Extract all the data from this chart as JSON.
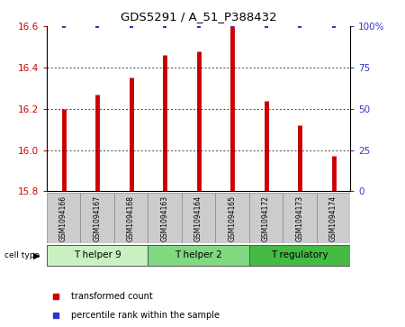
{
  "title": "GDS5291 / A_51_P388432",
  "samples": [
    "GSM1094166",
    "GSM1094167",
    "GSM1094168",
    "GSM1094163",
    "GSM1094164",
    "GSM1094165",
    "GSM1094172",
    "GSM1094173",
    "GSM1094174"
  ],
  "transformed_counts": [
    16.2,
    16.27,
    16.35,
    16.46,
    16.48,
    16.6,
    16.24,
    16.12,
    15.97
  ],
  "percentile_ranks": [
    100,
    100,
    100,
    100,
    100,
    100,
    100,
    100,
    100
  ],
  "ylim": [
    15.8,
    16.6
  ],
  "yticks": [
    15.8,
    16.0,
    16.2,
    16.4,
    16.6
  ],
  "right_yticks": [
    0,
    25,
    50,
    75,
    100
  ],
  "bar_color": "#cc0000",
  "dot_color": "#3333cc",
  "cell_types": [
    {
      "label": "T helper 9",
      "start": 0,
      "end": 3,
      "color": "#c8f0c0"
    },
    {
      "label": "T helper 2",
      "start": 3,
      "end": 6,
      "color": "#80d880"
    },
    {
      "label": "T regulatory",
      "start": 6,
      "end": 9,
      "color": "#44bb44"
    }
  ],
  "sample_box_color": "#cccccc",
  "grid_color": "#000000",
  "legend_red_label": "transformed count",
  "legend_blue_label": "percentile rank within the sample"
}
